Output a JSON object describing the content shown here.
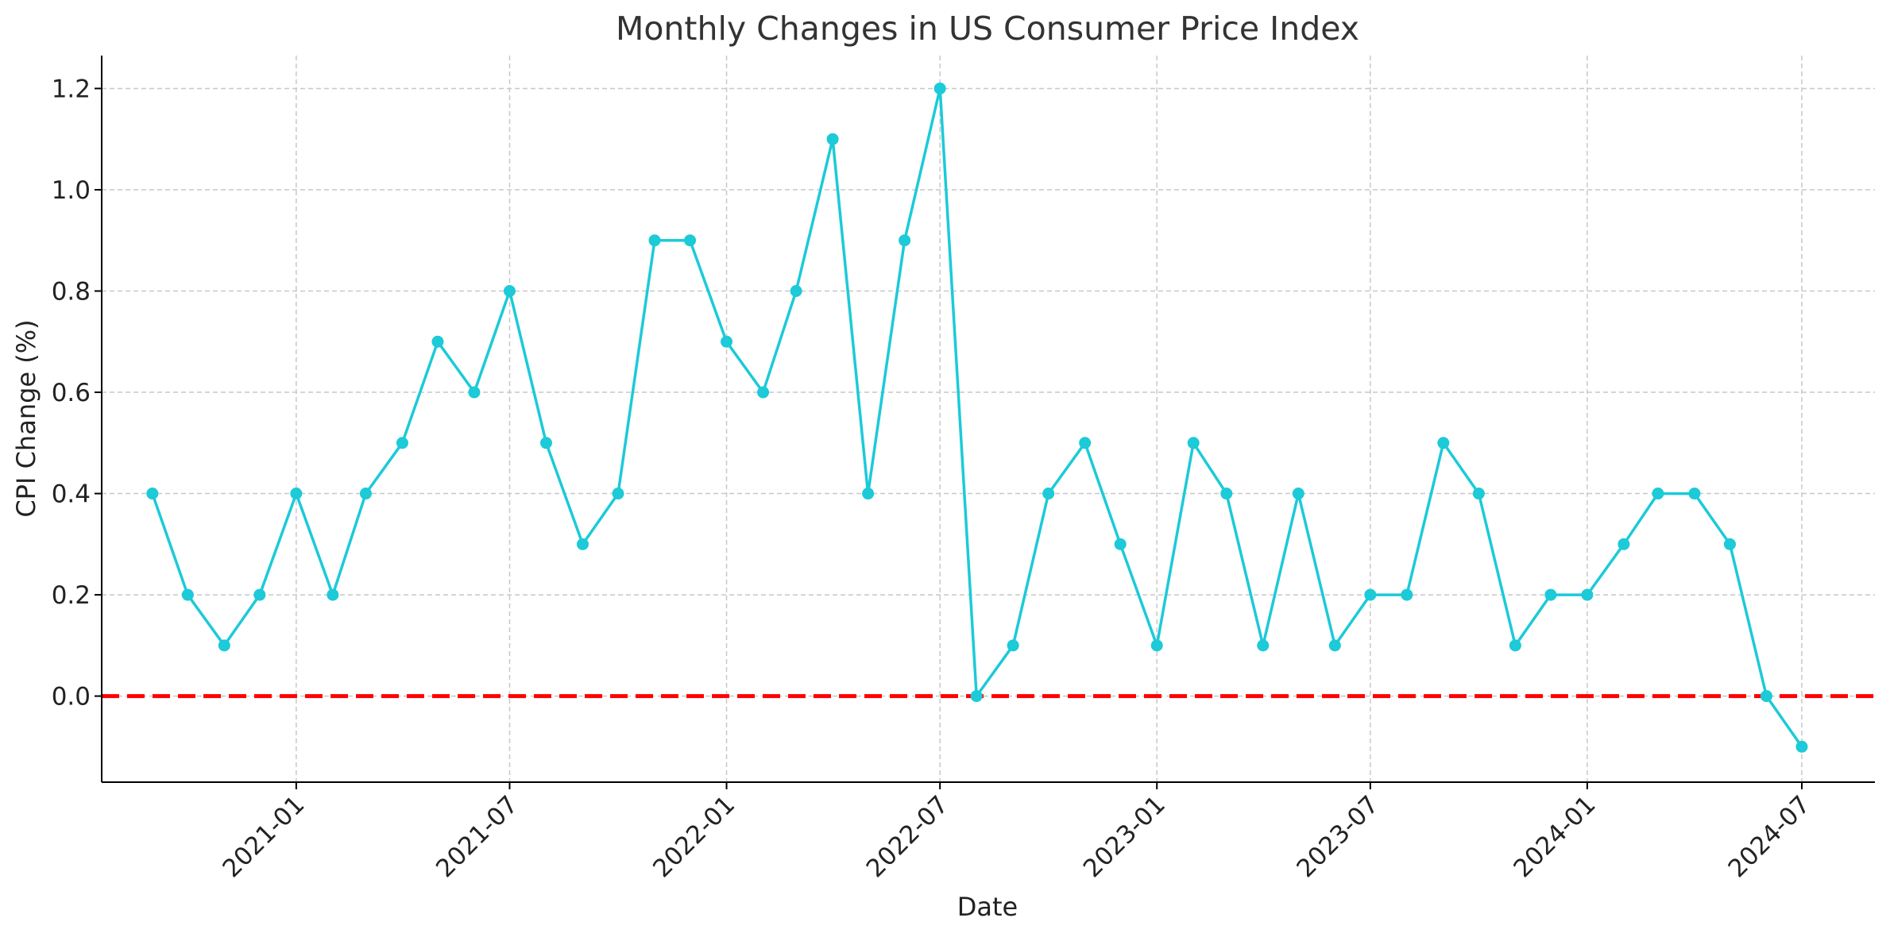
{
  "chart_data": {
    "type": "line",
    "title": "Monthly Changes in US Consumer Price Index",
    "xlabel": "Date",
    "ylabel": "CPI Change (%)",
    "x": [
      "2020-09",
      "2020-10",
      "2020-11",
      "2020-12",
      "2021-01",
      "2021-02",
      "2021-03",
      "2021-04",
      "2021-05",
      "2021-06",
      "2021-07",
      "2021-08",
      "2021-09",
      "2021-10",
      "2021-11",
      "2021-12",
      "2022-01",
      "2022-02",
      "2022-03",
      "2022-04",
      "2022-05",
      "2022-06",
      "2022-07",
      "2022-08",
      "2022-09",
      "2022-10",
      "2022-11",
      "2022-12",
      "2023-01",
      "2023-02",
      "2023-03",
      "2023-04",
      "2023-05",
      "2023-06",
      "2023-07",
      "2023-08",
      "2023-09",
      "2023-10",
      "2023-11",
      "2023-12",
      "2024-01",
      "2024-02",
      "2024-03",
      "2024-04",
      "2024-05",
      "2024-06",
      "2024-07"
    ],
    "series": [
      {
        "values": [
          0.4,
          0.2,
          0.1,
          0.2,
          0.4,
          0.2,
          0.4,
          0.5,
          0.7,
          0.6,
          0.8,
          0.5,
          0.3,
          0.4,
          0.9,
          0.9,
          0.7,
          0.6,
          0.8,
          1.1,
          0.4,
          0.9,
          1.2,
          0.0,
          0.1,
          0.4,
          0.5,
          0.3,
          0.1,
          0.5,
          0.4,
          0.1,
          0.4,
          0.1,
          0.2,
          0.2,
          0.5,
          0.4,
          0.1,
          0.2,
          0.2,
          0.3,
          0.4,
          0.4,
          0.3,
          0.0,
          -0.1
        ],
        "color": "#1ccad8"
      }
    ],
    "reference_line": {
      "y": 0.0,
      "color": "#ff0000",
      "style": "dashed"
    },
    "x_ticks": [
      "2021-01",
      "2021-07",
      "2022-01",
      "2022-07",
      "2023-01",
      "2023-07",
      "2024-01",
      "2024-07"
    ],
    "y_ticks": [
      0.0,
      0.2,
      0.4,
      0.6,
      0.8,
      1.0,
      1.2
    ],
    "y_tick_labels": [
      "0.0",
      "0.2",
      "0.4",
      "0.6",
      "0.8",
      "1.0",
      "1.2"
    ],
    "ylim": [
      -0.17,
      1.265
    ],
    "xlim": [
      "2020-07-20",
      "2024-09-01"
    ],
    "grid": true
  }
}
